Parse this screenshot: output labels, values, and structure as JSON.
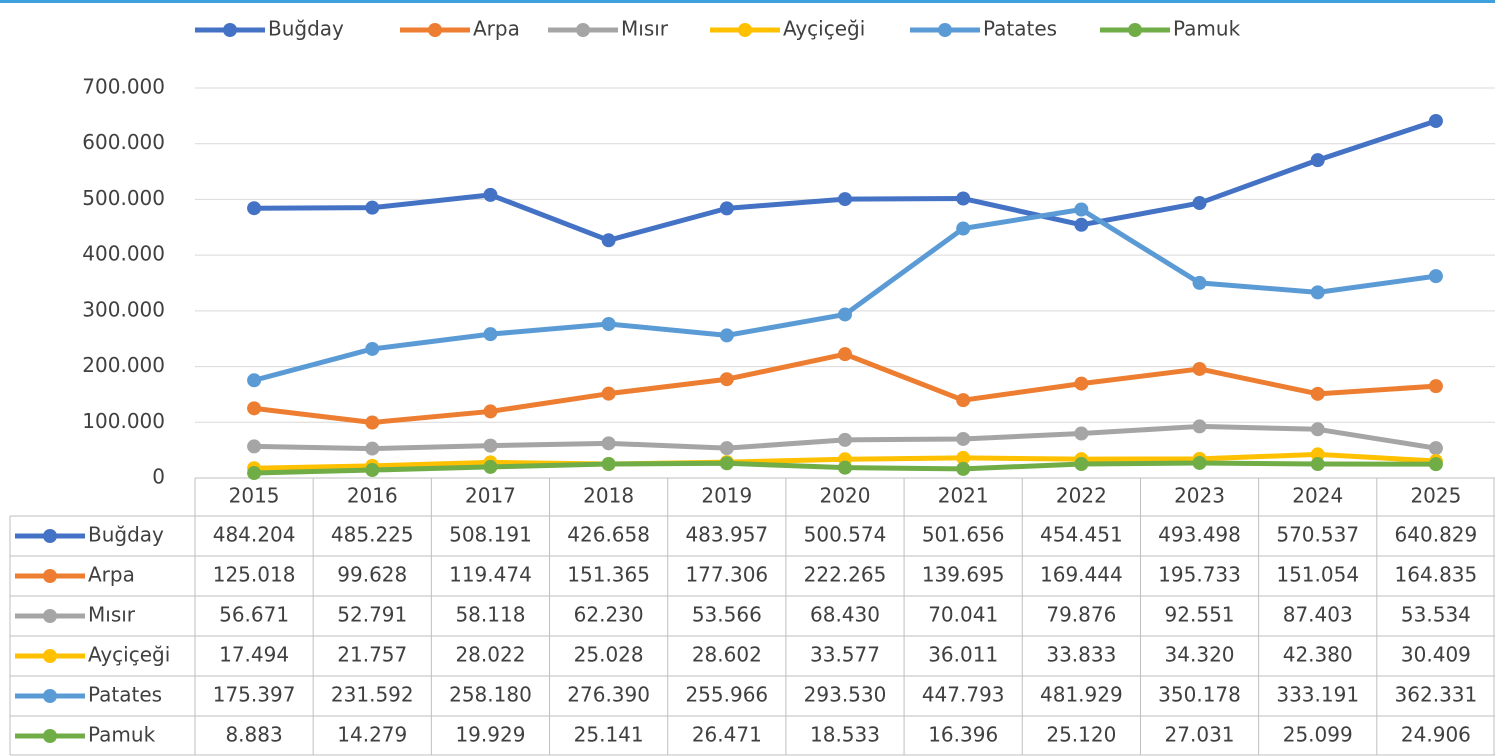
{
  "chart_data": {
    "type": "line",
    "categories": [
      "2015",
      "2016",
      "2017",
      "2018",
      "2019",
      "2020",
      "2021",
      "2022",
      "2023",
      "2024",
      "2025"
    ],
    "ylim": [
      0,
      700000
    ],
    "yticks": [
      0,
      {
        "value": 100000,
        "label": "100.000"
      },
      {
        "value": 200000,
        "label": "200.000"
      },
      {
        "value": 300000,
        "label": "300.000"
      },
      {
        "value": 400000,
        "label": "400.000"
      },
      {
        "value": 500000,
        "label": "500.000"
      },
      {
        "value": 600000,
        "label": "600.000"
      },
      {
        "value": 700000,
        "label": "700.000"
      }
    ],
    "grid": true,
    "legend": "top",
    "series": [
      {
        "name": "Buğday",
        "color": "#4472c4",
        "values": [
          484204,
          485225,
          508191,
          426658,
          483957,
          500574,
          501656,
          454451,
          493498,
          570537,
          640829
        ],
        "value_labels": [
          "484.204",
          "485.225",
          "508.191",
          "426.658",
          "483.957",
          "500.574",
          "501.656",
          "454.451",
          "493.498",
          "570.537",
          "640.829"
        ]
      },
      {
        "name": "Arpa",
        "color": "#ed7d31",
        "values": [
          125018,
          99628,
          119474,
          151365,
          177306,
          222265,
          139695,
          169444,
          195733,
          151054,
          164835
        ],
        "value_labels": [
          "125.018",
          "99.628",
          "119.474",
          "151.365",
          "177.306",
          "222.265",
          "139.695",
          "169.444",
          "195.733",
          "151.054",
          "164.835"
        ]
      },
      {
        "name": "Mısır",
        "color": "#a5a5a5",
        "values": [
          56671,
          52791,
          58118,
          62230,
          53566,
          68430,
          70041,
          79876,
          92551,
          87403,
          53534
        ],
        "value_labels": [
          "56.671",
          "52.791",
          "58.118",
          "62.230",
          "53.566",
          "68.430",
          "70.041",
          "79.876",
          "92.551",
          "87.403",
          "53.534"
        ]
      },
      {
        "name": "Ayçiçeği",
        "color": "#ffc000",
        "values": [
          17494,
          21757,
          28022,
          25028,
          28602,
          33577,
          36011,
          33833,
          34320,
          42380,
          30409
        ],
        "value_labels": [
          "17.494",
          "21.757",
          "28.022",
          "25.028",
          "28.602",
          "33.577",
          "36.011",
          "33.833",
          "34.320",
          "42.380",
          "30.409"
        ]
      },
      {
        "name": "Patates",
        "color": "#5b9bd5",
        "values": [
          175397,
          231592,
          258180,
          276390,
          255966,
          293530,
          447793,
          481929,
          350178,
          333191,
          362331
        ],
        "value_labels": [
          "175.397",
          "231.592",
          "258.180",
          "276.390",
          "255.966",
          "293.530",
          "447.793",
          "481.929",
          "350.178",
          "333.191",
          "362.331"
        ]
      },
      {
        "name": "Pamuk",
        "color": "#70ad47",
        "values": [
          8883,
          14279,
          19929,
          25141,
          26471,
          18533,
          16396,
          25120,
          27031,
          25099,
          24906
        ],
        "value_labels": [
          "8.883",
          "14.279",
          "19.929",
          "25.141",
          "26.471",
          "18.533",
          "16.396",
          "25.120",
          "27.031",
          "25.099",
          "24.906"
        ]
      }
    ]
  }
}
